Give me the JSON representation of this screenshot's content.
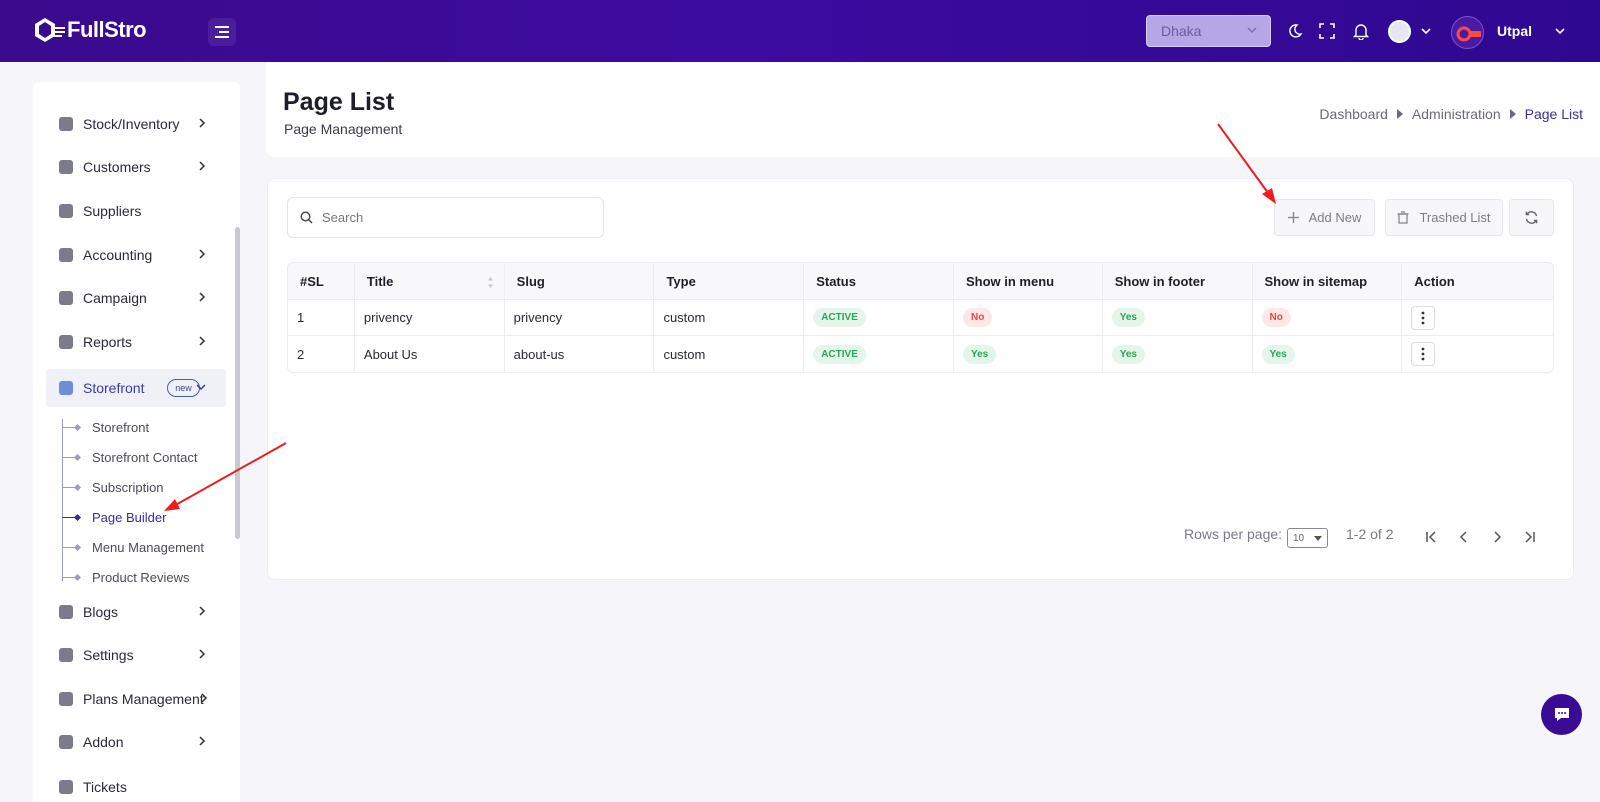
{
  "app": {
    "logo_text": "FullStro",
    "branch": "Dhaka",
    "user_name": "Utpal"
  },
  "icons": {
    "menu_toggle": "menu-icon",
    "theme": "moon-icon",
    "fullscreen": "fullscreen-icon",
    "notifications": "bell-icon",
    "search": "search-icon",
    "add": "plus-icon",
    "trash": "trash-icon",
    "refresh": "refresh-icon",
    "chat": "chat-icon"
  },
  "colors": {
    "brand": "#3a0b8c",
    "active": "#3b2aa0",
    "success": "#27a55a",
    "danger": "#e24848"
  },
  "sidebar": {
    "items": [
      {
        "label": "Stock/Inventory",
        "has_children": true
      },
      {
        "label": "Customers",
        "has_children": true
      },
      {
        "label": "Suppliers",
        "has_children": false
      },
      {
        "label": "Accounting",
        "has_children": true
      },
      {
        "label": "Campaign",
        "has_children": true
      },
      {
        "label": "Reports",
        "has_children": true
      },
      {
        "label": "Storefront",
        "badge": "new",
        "expanded": true
      },
      {
        "label": "Blogs",
        "has_children": true
      },
      {
        "label": "Settings",
        "has_children": true
      },
      {
        "label": "Plans Management",
        "has_children": true
      },
      {
        "label": "Addon",
        "has_children": true
      },
      {
        "label": "Tickets",
        "has_children": false
      }
    ],
    "storefront_children": [
      {
        "label": "Storefront"
      },
      {
        "label": "Storefront Contact"
      },
      {
        "label": "Subscription"
      },
      {
        "label": "Page Builder",
        "active": true
      },
      {
        "label": "Menu Management"
      },
      {
        "label": "Product Reviews"
      }
    ]
  },
  "header": {
    "title": "Page List",
    "subtitle": "Page Management",
    "breadcrumb": [
      "Dashboard",
      "Administration",
      "Page List"
    ]
  },
  "toolbar": {
    "search_placeholder": "Search",
    "add_new_label": "Add New",
    "trashed_list_label": "Trashed List"
  },
  "table": {
    "columns": [
      "#SL",
      "Title",
      "Slug",
      "Type",
      "Status",
      "Show in menu",
      "Show in footer",
      "Show in sitemap",
      "Action"
    ],
    "rows": [
      {
        "sl": "1",
        "title": "privency",
        "slug": "privency",
        "type": "custom",
        "status": "ACTIVE",
        "menu": "No",
        "footer": "Yes",
        "sitemap": "No"
      },
      {
        "sl": "2",
        "title": "About Us",
        "slug": "about-us",
        "type": "custom",
        "status": "ACTIVE",
        "menu": "Yes",
        "footer": "Yes",
        "sitemap": "Yes"
      }
    ]
  },
  "pagination": {
    "rows_per_page_label": "Rows per page:",
    "rows_per_page": "10",
    "range": "1-2 of 2"
  }
}
